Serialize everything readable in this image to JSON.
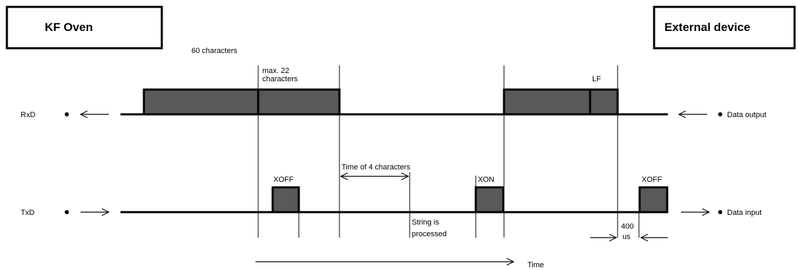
{
  "boxes": {
    "left_title": "KF Oven",
    "right_title": "External device"
  },
  "labels": {
    "sixty_chars": "60 characters",
    "max22_line1": "max. 22",
    "max22_line2": "characters",
    "lf": "LF",
    "rxd": "RxD",
    "data_output": "Data output",
    "time_of_4": "Time of 4 characters",
    "xoff_1": "XOFF",
    "xon": "XON",
    "xoff_2": "XOFF",
    "txd": "TxD",
    "data_input": "Data input",
    "string_line1": "String is",
    "string_line2": "processed",
    "us_value": "400",
    "us_unit": "us",
    "time": "Time"
  },
  "colors": {
    "block_fill": "#595959",
    "line": "#000000"
  }
}
